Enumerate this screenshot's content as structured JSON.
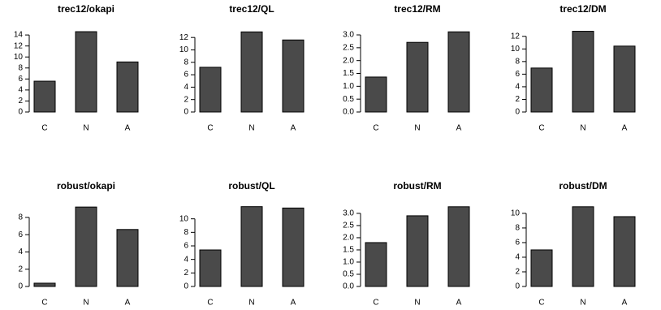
{
  "chart_data": [
    {
      "type": "bar",
      "title": "trec12/okapi",
      "categories": [
        "C",
        "N",
        "A"
      ],
      "values": [
        5.6,
        14.6,
        9.1
      ],
      "color": "#4a4a4a",
      "ylim": [
        0,
        14.9
      ],
      "yticks": [
        0,
        2,
        4,
        6,
        8,
        10,
        12,
        14
      ]
    },
    {
      "type": "bar",
      "title": "trec12/QL",
      "categories": [
        "C",
        "N",
        "A"
      ],
      "values": [
        7.2,
        12.9,
        11.6
      ],
      "color": "#4a4a4a",
      "ylim": [
        0,
        13.2
      ],
      "yticks": [
        0,
        2,
        4,
        6,
        8,
        10,
        12
      ]
    },
    {
      "type": "bar",
      "title": "trec12/RM",
      "categories": [
        "C",
        "N",
        "A"
      ],
      "values": [
        1.36,
        2.71,
        3.12
      ],
      "color": "#4a4a4a",
      "ylim": [
        0,
        3.19
      ],
      "yticks": [
        {
          "value": 0,
          "label": "0.0"
        },
        0.5,
        {
          "value": 1,
          "label": "1.0"
        },
        1.5,
        {
          "value": 2,
          "label": "2.0"
        },
        2.5,
        {
          "value": 3,
          "label": "3.0"
        }
      ]
    },
    {
      "type": "bar",
      "title": "trec12/DM",
      "categories": [
        "C",
        "N",
        "A"
      ],
      "values": [
        6.97,
        12.8,
        10.45
      ],
      "color": "#4a4a4a",
      "ylim": [
        0,
        13.0
      ],
      "yticks": [
        0,
        2,
        4,
        6,
        8,
        10,
        12
      ]
    },
    {
      "type": "bar",
      "title": "robust/okapi",
      "categories": [
        "C",
        "N",
        "A"
      ],
      "values": [
        0.38,
        9.2,
        6.6
      ],
      "color": "#4a4a4a",
      "ylim": [
        0,
        9.4
      ],
      "yticks": [
        0,
        2,
        4,
        6,
        8
      ]
    },
    {
      "type": "bar",
      "title": "robust/QL",
      "categories": [
        "C",
        "N",
        "A"
      ],
      "values": [
        5.4,
        11.8,
        11.6
      ],
      "color": "#4a4a4a",
      "ylim": [
        0,
        12.0
      ],
      "yticks": [
        0,
        2,
        4,
        6,
        8,
        10
      ]
    },
    {
      "type": "bar",
      "title": "robust/RM",
      "categories": [
        "C",
        "N",
        "A"
      ],
      "values": [
        1.8,
        2.9,
        3.27
      ],
      "color": "#4a4a4a",
      "ylim": [
        0,
        3.33
      ],
      "yticks": [
        {
          "value": 0,
          "label": "0.0"
        },
        0.5,
        {
          "value": 1,
          "label": "1.0"
        },
        1.5,
        {
          "value": 2,
          "label": "2.0"
        },
        2.5,
        {
          "value": 3,
          "label": "3.0"
        }
      ]
    },
    {
      "type": "bar",
      "title": "robust/DM",
      "categories": [
        "C",
        "N",
        "A"
      ],
      "values": [
        5.0,
        10.9,
        9.55
      ],
      "color": "#4a4a4a",
      "ylim": [
        0,
        11.1
      ],
      "yticks": [
        0,
        2,
        4,
        6,
        8,
        10
      ]
    }
  ]
}
